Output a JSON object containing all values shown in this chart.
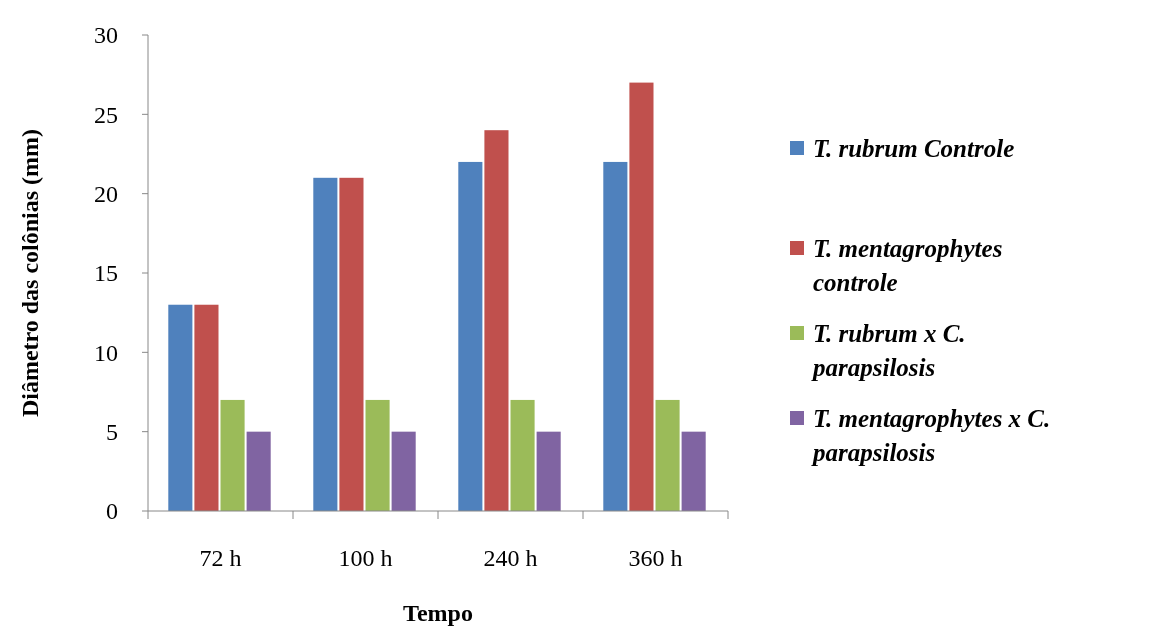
{
  "chart_data": {
    "type": "bar",
    "xlabel": "Tempo",
    "ylabel": "Diâmetro das colônias (mm)",
    "categories": [
      "72 h",
      "100 h",
      "240 h",
      "360 h"
    ],
    "series": [
      {
        "name": "T. rubrum Controle",
        "color": "#4f81bd",
        "values": [
          13,
          21,
          22,
          22
        ]
      },
      {
        "name": "T. mentagrophytes controle",
        "color": "#c0504d",
        "values": [
          13,
          21,
          24,
          27
        ]
      },
      {
        "name": "T. rubrum x C. parapsilosis",
        "color": "#9bbb59",
        "values": [
          7,
          7,
          7,
          7
        ]
      },
      {
        "name": "T. mentagrophytes x C. parapsilosis",
        "color": "#8064a2",
        "values": [
          5,
          5,
          5,
          5
        ]
      }
    ],
    "ylim": [
      0,
      30
    ],
    "yticks": [
      0,
      5,
      10,
      15,
      20,
      25,
      30
    ],
    "grid": false,
    "legend": "right"
  }
}
